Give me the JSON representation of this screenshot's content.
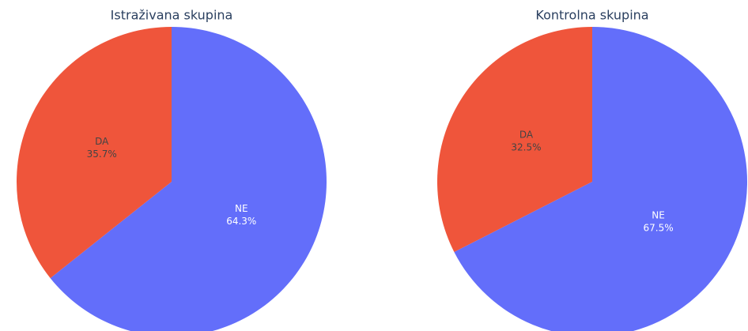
{
  "chart_data": [
    {
      "type": "pie",
      "title": "Istraživana skupina",
      "categories": [
        "NE",
        "DA"
      ],
      "values": [
        64.3,
        35.7
      ],
      "value_labels": [
        "64.3%",
        "35.7%"
      ],
      "colors": [
        "#636efa",
        "#ef553b"
      ]
    },
    {
      "type": "pie",
      "title": "Kontrolna skupina",
      "categories": [
        "NE",
        "DA"
      ],
      "values": [
        67.5,
        32.5
      ],
      "value_labels": [
        "67.5%",
        "32.5%"
      ],
      "colors": [
        "#636efa",
        "#ef553b"
      ]
    }
  ]
}
